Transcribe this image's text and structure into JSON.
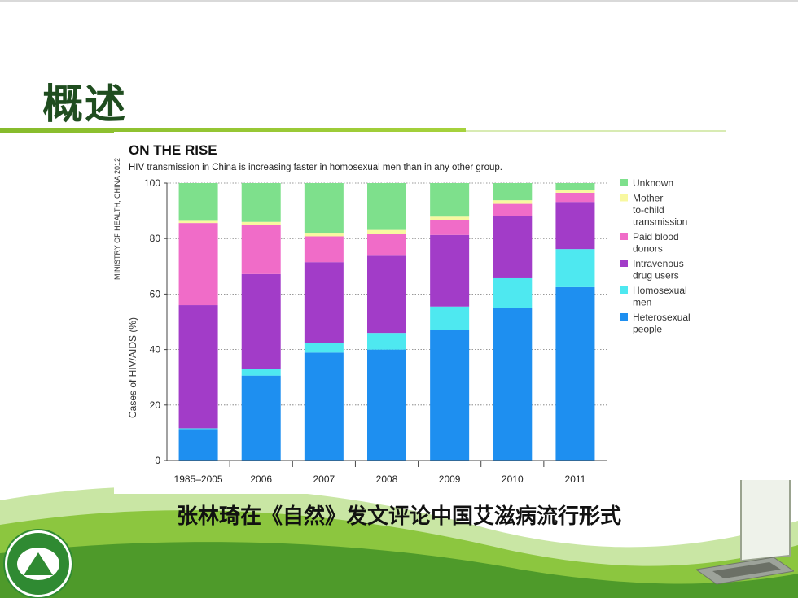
{
  "slide": {
    "title": "概述",
    "caption": "张林琦在《自然》发文评论中国艾滋病流行形式"
  },
  "chart_data": {
    "type": "bar",
    "stacked": true,
    "title": "ON THE RISE",
    "subtitle": "HIV transmission in China is increasing faster in homosexual men than in any other group.",
    "source": "MINISTRY OF HEALTH, CHINA 2012",
    "ylabel": "Cases of HIV/AIDS (%)",
    "xlabel": "",
    "ylim": [
      0,
      100
    ],
    "yticks": [
      0,
      20,
      40,
      60,
      80,
      100
    ],
    "grid": true,
    "legend_position": "right",
    "categories": [
      "1985–2005",
      "2006",
      "2007",
      "2008",
      "2009",
      "2010",
      "2011"
    ],
    "series": [
      {
        "name": "Heterosexual people",
        "color": "#1e8ff0",
        "values": [
          11.3,
          30.6,
          38.9,
          40.0,
          47.0,
          55.0,
          62.5
        ]
      },
      {
        "name": "Homosexual men",
        "color": "#4ee8f0",
        "values": [
          0.3,
          2.5,
          3.4,
          6.0,
          8.5,
          10.7,
          13.7
        ]
      },
      {
        "name": "Intravenous drug users",
        "color": "#a23cc8",
        "values": [
          44.4,
          34.1,
          29.2,
          27.8,
          25.8,
          22.4,
          17.0
        ]
      },
      {
        "name": "Paid blood donors",
        "color": "#f06cc8",
        "values": [
          29.6,
          17.6,
          9.3,
          8.0,
          5.4,
          4.4,
          3.3
        ]
      },
      {
        "name": "Mother-to-child transmission",
        "color": "#f8f8a0",
        "values": [
          0.8,
          1.2,
          1.3,
          1.3,
          1.2,
          1.3,
          1.1
        ]
      },
      {
        "name": "Unknown",
        "color": "#7ee08c",
        "values": [
          13.6,
          14.0,
          17.9,
          16.9,
          12.1,
          6.2,
          2.4
        ]
      }
    ],
    "legend": [
      {
        "label": "Unknown",
        "color": "#7ee08c"
      },
      {
        "label": "Mother-to-child transmission",
        "color": "#f8f8a0"
      },
      {
        "label": "Paid blood donors",
        "color": "#f06cc8"
      },
      {
        "label": "Intravenous drug users",
        "color": "#a23cc8"
      },
      {
        "label": "Homosexual men",
        "color": "#4ee8f0"
      },
      {
        "label": "Heterosexual people",
        "color": "#1e8ff0"
      }
    ]
  }
}
